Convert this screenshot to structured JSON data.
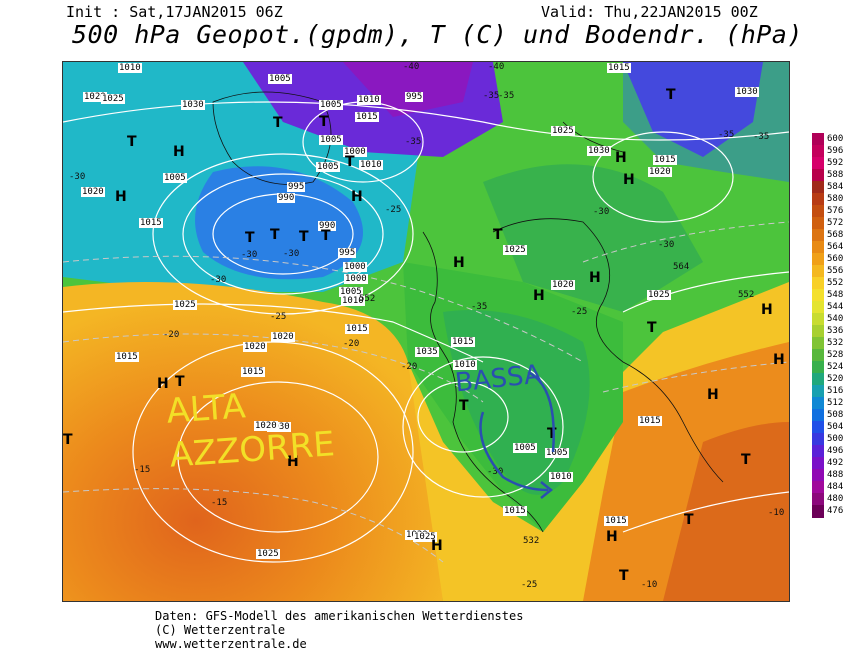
{
  "header": {
    "init": "Init : Sat,17JAN2015 06Z",
    "valid": "Valid: Thu,22JAN2015 00Z",
    "title": "500 hPa Geopot.(gpdm), T (C) und Bodendr. (hPa)"
  },
  "map": {
    "pressure_labels": [
      "1020",
      "1005",
      "1005",
      "995",
      "1010",
      "1000",
      "1005",
      "1015",
      "1005",
      "1010",
      "1000",
      "995",
      "990",
      "990",
      "995",
      "1000",
      "1005",
      "1010",
      "1015",
      "1020",
      "1025",
      "1030",
      "1010",
      "1005",
      "1015",
      "1020",
      "1025",
      "1015",
      "1015",
      "1030",
      "1020",
      "1025",
      "1020",
      "1015",
      "1010",
      "1025",
      "1035",
      "1030",
      "1025",
      "1015",
      "1005",
      "1010",
      "1005",
      "1015",
      "1015",
      "1020",
      "1025",
      "1030",
      "1020",
      "1015",
      "1030",
      "1025",
      "1015"
    ],
    "temp_labels": [
      "-40",
      "-40",
      "-35",
      "-35",
      "-30",
      "-30",
      "-30",
      "-30",
      "-25",
      "-25",
      "-20",
      "-20",
      "-15",
      "-15",
      "-25",
      "-30",
      "-35",
      "-35",
      "-30",
      "-30",
      "-25",
      "-20",
      "-10",
      "-10",
      "-35",
      "-35"
    ],
    "geopot_labels": [
      "552",
      "552",
      "564",
      "532"
    ],
    "highs": [
      "H",
      "H",
      "H",
      "H",
      "H",
      "H",
      "H",
      "H",
      "H",
      "H",
      "H",
      "H",
      "H",
      "H",
      "H"
    ],
    "lows": [
      "T",
      "T",
      "T",
      "T",
      "T",
      "T",
      "T",
      "T",
      "T",
      "T",
      "T",
      "T",
      "T",
      "T",
      "T",
      "T",
      "T",
      "T"
    ],
    "annotations": {
      "high": "ALTA\nAZZORRE",
      "low": "BASSA"
    },
    "annotation_colors": {
      "high": "#f2e027",
      "low": "#2a4fb0"
    }
  },
  "legend": {
    "ticks": [
      "600",
      "596",
      "592",
      "588",
      "584",
      "580",
      "576",
      "572",
      "568",
      "564",
      "560",
      "556",
      "552",
      "548",
      "544",
      "540",
      "536",
      "532",
      "528",
      "524",
      "520",
      "516",
      "512",
      "508",
      "504",
      "500",
      "496",
      "492",
      "488",
      "484",
      "480",
      "476"
    ],
    "colors": [
      "#b00058",
      "#c4005c",
      "#d6006a",
      "#b8004a",
      "#a02a1a",
      "#b83c14",
      "#c44e10",
      "#d06010",
      "#dc7412",
      "#e88a14",
      "#f0a018",
      "#f4b820",
      "#f8d028",
      "#f4e02c",
      "#e4e430",
      "#c8dc30",
      "#a8d030",
      "#80c434",
      "#58b83c",
      "#38b04c",
      "#20a87c",
      "#18a0b0",
      "#1088d4",
      "#1070e0",
      "#2050e8",
      "#3838e0",
      "#5a20d8",
      "#7a10c8",
      "#9008b4",
      "#a0089c",
      "#8c087c",
      "#6c0058"
    ]
  },
  "footer": {
    "line1": "Daten: GFS-Modell des amerikanischen Wetterdienstes",
    "line2": "(C) Wetterzentrale",
    "line3": "www.wetterzentrale.de"
  }
}
